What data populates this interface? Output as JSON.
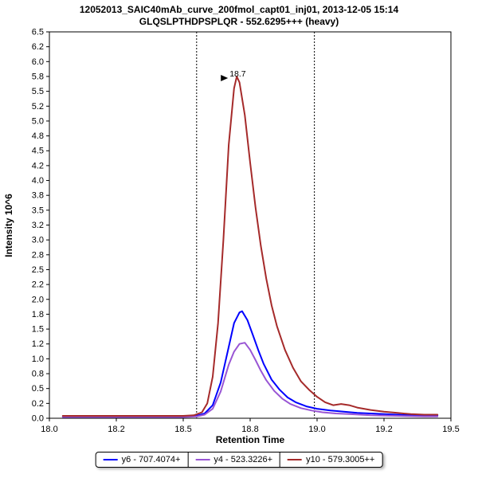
{
  "title": {
    "line1": "12052013_SAIC40mAb_curve_200fmol_capt01_inj01, 2013-12-05 15:14",
    "line2": "GLQSLPTHDPSPLQR - 552.6295+++ (heavy)"
  },
  "chart_data": {
    "type": "line",
    "title": "12052013_SAIC40mAb_curve_200fmol_capt01_inj01, 2013-12-05 15:14",
    "subtitle": "GLQSLPTHDPSPLQR - 552.6295+++ (heavy)",
    "xlabel": "Retention Time",
    "ylabel": "Intensity 10^6",
    "xlim": [
      18.0,
      19.5
    ],
    "ylim": [
      0,
      6.5
    ],
    "grid": false,
    "legend_position": "bottom",
    "x_ticks": [
      {
        "v": 18.0,
        "label": "18.0"
      },
      {
        "v": 18.25,
        "label": "18.2"
      },
      {
        "v": 18.5,
        "label": "18.5"
      },
      {
        "v": 18.75,
        "label": "18.8"
      },
      {
        "v": 19.0,
        "label": "19.0"
      },
      {
        "v": 19.25,
        "label": "19.2"
      },
      {
        "v": 19.5,
        "label": "19.5"
      }
    ],
    "y_ticks": [
      {
        "v": 6.5,
        "label": "6.5"
      },
      {
        "v": 6.25,
        "label": "6.2"
      },
      {
        "v": 6.0,
        "label": "6.0"
      },
      {
        "v": 5.75,
        "label": "5.8"
      },
      {
        "v": 5.5,
        "label": "5.5"
      },
      {
        "v": 5.25,
        "label": "5.2"
      },
      {
        "v": 5.0,
        "label": "5.0"
      },
      {
        "v": 4.75,
        "label": "4.8"
      },
      {
        "v": 4.5,
        "label": "4.5"
      },
      {
        "v": 4.25,
        "label": "4.2"
      },
      {
        "v": 4.0,
        "label": "4.0"
      },
      {
        "v": 3.75,
        "label": "3.8"
      },
      {
        "v": 3.5,
        "label": "3.5"
      },
      {
        "v": 3.25,
        "label": "3.2"
      },
      {
        "v": 3.0,
        "label": "3.0"
      },
      {
        "v": 2.75,
        "label": "2.8"
      },
      {
        "v": 2.5,
        "label": "2.5"
      },
      {
        "v": 2.25,
        "label": "2.2"
      },
      {
        "v": 2.0,
        "label": "2.0"
      },
      {
        "v": 1.75,
        "label": "1.8"
      },
      {
        "v": 1.5,
        "label": "1.5"
      },
      {
        "v": 1.25,
        "label": "1.2"
      },
      {
        "v": 1.0,
        "label": "1.0"
      },
      {
        "v": 0.75,
        "label": "0.8"
      },
      {
        "v": 0.5,
        "label": "0.5"
      },
      {
        "v": 0.25,
        "label": "0.2"
      },
      {
        "v": 0.0,
        "label": "0.0"
      }
    ],
    "boundaries": [
      18.55,
      18.99
    ],
    "annotation": {
      "text": "18.7",
      "rt": 18.7,
      "intensity": 5.75,
      "color": "#b22222"
    },
    "series": [
      {
        "name": "y6 - 707.4074+",
        "color": "#0000ff",
        "points": [
          [
            18.05,
            0.03
          ],
          [
            18.1,
            0.03
          ],
          [
            18.15,
            0.03
          ],
          [
            18.2,
            0.03
          ],
          [
            18.25,
            0.03
          ],
          [
            18.3,
            0.03
          ],
          [
            18.35,
            0.03
          ],
          [
            18.4,
            0.03
          ],
          [
            18.45,
            0.03
          ],
          [
            18.5,
            0.03
          ],
          [
            18.55,
            0.04
          ],
          [
            18.58,
            0.08
          ],
          [
            18.61,
            0.22
          ],
          [
            18.64,
            0.6
          ],
          [
            18.67,
            1.2
          ],
          [
            18.69,
            1.6
          ],
          [
            18.71,
            1.78
          ],
          [
            18.72,
            1.8
          ],
          [
            18.74,
            1.65
          ],
          [
            18.76,
            1.4
          ],
          [
            18.78,
            1.15
          ],
          [
            18.8,
            0.92
          ],
          [
            18.83,
            0.65
          ],
          [
            18.86,
            0.48
          ],
          [
            18.89,
            0.35
          ],
          [
            18.92,
            0.27
          ],
          [
            18.96,
            0.2
          ],
          [
            19.0,
            0.16
          ],
          [
            19.05,
            0.13
          ],
          [
            19.1,
            0.11
          ],
          [
            19.15,
            0.09
          ],
          [
            19.2,
            0.08
          ],
          [
            19.25,
            0.07
          ],
          [
            19.3,
            0.06
          ],
          [
            19.35,
            0.05
          ],
          [
            19.4,
            0.05
          ],
          [
            19.45,
            0.05
          ]
        ]
      },
      {
        "name": "y4 - 523.3226+",
        "color": "#9955d4",
        "points": [
          [
            18.05,
            0.02
          ],
          [
            18.1,
            0.02
          ],
          [
            18.15,
            0.02
          ],
          [
            18.2,
            0.02
          ],
          [
            18.25,
            0.02
          ],
          [
            18.3,
            0.02
          ],
          [
            18.35,
            0.02
          ],
          [
            18.4,
            0.02
          ],
          [
            18.45,
            0.02
          ],
          [
            18.5,
            0.02
          ],
          [
            18.55,
            0.03
          ],
          [
            18.58,
            0.06
          ],
          [
            18.61,
            0.16
          ],
          [
            18.64,
            0.45
          ],
          [
            18.67,
            0.9
          ],
          [
            18.69,
            1.12
          ],
          [
            18.71,
            1.25
          ],
          [
            18.73,
            1.27
          ],
          [
            18.75,
            1.15
          ],
          [
            18.77,
            0.98
          ],
          [
            18.79,
            0.8
          ],
          [
            18.81,
            0.64
          ],
          [
            18.84,
            0.46
          ],
          [
            18.87,
            0.33
          ],
          [
            18.9,
            0.24
          ],
          [
            18.94,
            0.17
          ],
          [
            18.98,
            0.13
          ],
          [
            19.02,
            0.1
          ],
          [
            19.07,
            0.08
          ],
          [
            19.12,
            0.07
          ],
          [
            19.2,
            0.05
          ],
          [
            19.3,
            0.04
          ],
          [
            19.4,
            0.03
          ],
          [
            19.45,
            0.03
          ]
        ]
      },
      {
        "name": "y10 - 579.3005++",
        "color": "#a52a2a",
        "points": [
          [
            18.05,
            0.04
          ],
          [
            18.1,
            0.04
          ],
          [
            18.15,
            0.04
          ],
          [
            18.2,
            0.04
          ],
          [
            18.25,
            0.04
          ],
          [
            18.3,
            0.04
          ],
          [
            18.35,
            0.04
          ],
          [
            18.4,
            0.04
          ],
          [
            18.45,
            0.04
          ],
          [
            18.5,
            0.04
          ],
          [
            18.54,
            0.05
          ],
          [
            18.57,
            0.1
          ],
          [
            18.59,
            0.25
          ],
          [
            18.61,
            0.7
          ],
          [
            18.63,
            1.6
          ],
          [
            18.65,
            3.0
          ],
          [
            18.67,
            4.6
          ],
          [
            18.69,
            5.55
          ],
          [
            18.7,
            5.75
          ],
          [
            18.71,
            5.65
          ],
          [
            18.73,
            5.1
          ],
          [
            18.75,
            4.3
          ],
          [
            18.77,
            3.55
          ],
          [
            18.79,
            2.9
          ],
          [
            18.81,
            2.35
          ],
          [
            18.83,
            1.9
          ],
          [
            18.85,
            1.55
          ],
          [
            18.88,
            1.15
          ],
          [
            18.91,
            0.85
          ],
          [
            18.94,
            0.62
          ],
          [
            18.97,
            0.48
          ],
          [
            19.0,
            0.36
          ],
          [
            19.03,
            0.27
          ],
          [
            19.06,
            0.22
          ],
          [
            19.09,
            0.24
          ],
          [
            19.12,
            0.22
          ],
          [
            19.15,
            0.18
          ],
          [
            19.2,
            0.14
          ],
          [
            19.25,
            0.11
          ],
          [
            19.3,
            0.09
          ],
          [
            19.35,
            0.07
          ],
          [
            19.4,
            0.06
          ],
          [
            19.45,
            0.06
          ]
        ]
      }
    ]
  }
}
